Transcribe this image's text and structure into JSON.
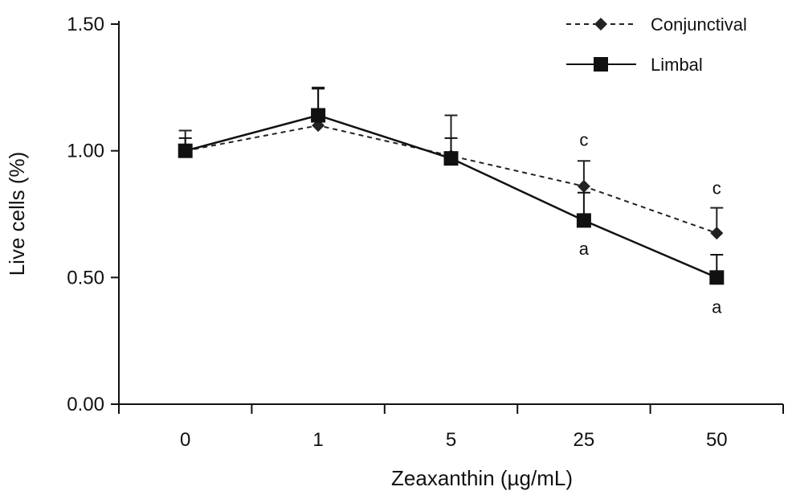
{
  "chart_data": {
    "type": "line",
    "title": "",
    "xlabel": "Zeaxanthin (µg/mL)",
    "ylabel": "Live cells (%)",
    "categories": [
      "0",
      "1",
      "5",
      "25",
      "50"
    ],
    "ylim": [
      0,
      1.5
    ],
    "yticks": [
      0,
      0.5,
      1.0,
      1.5
    ],
    "ytick_labels": [
      "0.00",
      "0.50",
      "1.00",
      "1.50"
    ],
    "grid": false,
    "legend_position": "top-right",
    "series": [
      {
        "name": "Conjunctival",
        "values": [
          1.0,
          1.1,
          0.98,
          0.86,
          0.675
        ],
        "errors": [
          0.08,
          0.15,
          0.16,
          0.1,
          0.1
        ],
        "line_style": "dashed",
        "marker": "diamond",
        "color": "#222222"
      },
      {
        "name": "Limbal",
        "values": [
          1.0,
          1.14,
          0.97,
          0.725,
          0.5
        ],
        "errors": [
          0.05,
          0.105,
          0.08,
          0.11,
          0.09
        ],
        "line_style": "solid",
        "marker": "square",
        "color": "#111111"
      }
    ],
    "annotations": [
      {
        "text": "c",
        "category": "25",
        "y": 1.02
      },
      {
        "text": "c",
        "category": "50",
        "y": 0.83
      },
      {
        "text": "a",
        "category": "25",
        "y": 0.59
      },
      {
        "text": "a",
        "category": "50",
        "y": 0.36
      }
    ]
  }
}
